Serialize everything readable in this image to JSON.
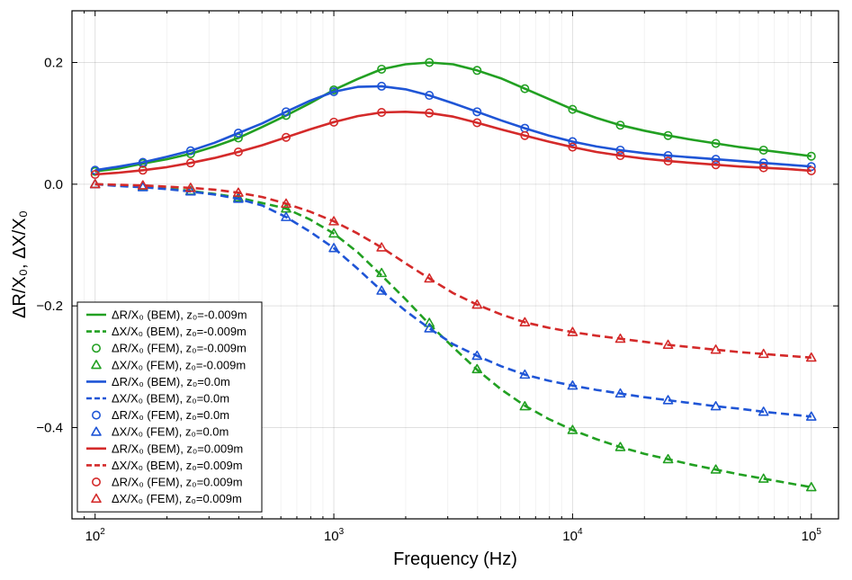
{
  "chart_data": {
    "type": "line",
    "title": "",
    "xlabel": "Frequency (Hz)",
    "ylabel": "ΔR/X₀,  ΔX/X₀",
    "xscale": "log",
    "xlim": [
      80,
      130000
    ],
    "ylim": [
      -0.55,
      0.285
    ],
    "xticks": [
      100,
      1000,
      10000,
      100000
    ],
    "xtick_labels": [
      {
        "base": "10",
        "exp": "2"
      },
      {
        "base": "10",
        "exp": "3"
      },
      {
        "base": "10",
        "exp": "4"
      },
      {
        "base": "10",
        "exp": "5"
      }
    ],
    "yticks": [
      -0.4,
      -0.2,
      0.0,
      0.2
    ],
    "ytick_labels": [
      "−0.4",
      "−0.2",
      "0.0",
      "0.2"
    ],
    "grid": true,
    "legend_position": "bottom-left",
    "curve_x": [
      100,
      125.9,
      158.5,
      199.5,
      251.2,
      316.2,
      398.1,
      501.2,
      631,
      794.3,
      1000,
      1258.9,
      1584.9,
      1995.3,
      2511.9,
      3162.3,
      3981.1,
      5011.9,
      6309.6,
      7943.3,
      10000,
      12589,
      15849,
      19953,
      25119,
      31623,
      39811,
      50119,
      63096,
      79433,
      100000
    ],
    "points_x": [
      100,
      158.5,
      251.2,
      398.1,
      631,
      1000,
      1584.9,
      2511.9,
      3981.1,
      6309.6,
      10000,
      15849,
      25119,
      39811,
      63096,
      100000
    ],
    "series": [
      {
        "name": "ΔR/X₀ (BEM),  z₀=-0.009m",
        "color": "#22a022",
        "style": "solid",
        "marker": "",
        "y": [
          0.021,
          0.026,
          0.034,
          0.041,
          0.05,
          0.062,
          0.076,
          0.094,
          0.113,
          0.133,
          0.155,
          0.173,
          0.189,
          0.197,
          0.2,
          0.197,
          0.187,
          0.174,
          0.157,
          0.14,
          0.123,
          0.109,
          0.097,
          0.088,
          0.08,
          0.073,
          0.067,
          0.061,
          0.056,
          0.051,
          0.046
        ]
      },
      {
        "name": "ΔX/X₀ (BEM),  z₀=-0.009m",
        "color": "#22a022",
        "style": "dashed",
        "marker": "",
        "y": [
          0.0,
          -0.002,
          -0.004,
          -0.007,
          -0.011,
          -0.016,
          -0.022,
          -0.031,
          -0.04,
          -0.058,
          -0.081,
          -0.112,
          -0.15,
          -0.189,
          -0.23,
          -0.268,
          -0.305,
          -0.337,
          -0.364,
          -0.386,
          -0.404,
          -0.419,
          -0.432,
          -0.443,
          -0.452,
          -0.461,
          -0.469,
          -0.477,
          -0.484,
          -0.491,
          -0.498
        ]
      },
      {
        "name": "ΔR/X₀ (FEM),  z₀=-0.009m",
        "color": "#22a022",
        "style": "none",
        "marker": "circle",
        "y": [
          0.021,
          0.034,
          0.05,
          0.076,
          0.113,
          0.155,
          0.189,
          0.2,
          0.187,
          0.157,
          0.123,
          0.097,
          0.08,
          0.067,
          0.056,
          0.046
        ]
      },
      {
        "name": "ΔX/X₀ (FEM),  z₀=-0.009m",
        "color": "#22a022",
        "style": "none",
        "marker": "triangle",
        "y": [
          0.0,
          -0.004,
          -0.011,
          -0.022,
          -0.04,
          -0.081,
          -0.146,
          -0.228,
          -0.304,
          -0.365,
          -0.404,
          -0.432,
          -0.452,
          -0.469,
          -0.484,
          -0.498
        ]
      },
      {
        "name": "ΔR/X₀ (BEM),  z₀=0.0m",
        "color": "#1f55d6",
        "style": "solid",
        "marker": "",
        "y": [
          0.023,
          0.029,
          0.036,
          0.045,
          0.055,
          0.068,
          0.084,
          0.1,
          0.119,
          0.137,
          0.152,
          0.16,
          0.161,
          0.156,
          0.146,
          0.133,
          0.119,
          0.105,
          0.092,
          0.08,
          0.07,
          0.062,
          0.056,
          0.051,
          0.047,
          0.044,
          0.041,
          0.038,
          0.035,
          0.032,
          0.029
        ]
      },
      {
        "name": "ΔX/X₀ (BEM),  z₀=0.0m",
        "color": "#1f55d6",
        "style": "dashed",
        "marker": "",
        "y": [
          0.0,
          -0.003,
          -0.005,
          -0.008,
          -0.012,
          -0.017,
          -0.024,
          -0.035,
          -0.054,
          -0.078,
          -0.105,
          -0.139,
          -0.175,
          -0.208,
          -0.237,
          -0.263,
          -0.282,
          -0.299,
          -0.313,
          -0.323,
          -0.331,
          -0.338,
          -0.344,
          -0.35,
          -0.355,
          -0.36,
          -0.365,
          -0.369,
          -0.374,
          -0.378,
          -0.382
        ]
      },
      {
        "name": "ΔR/X₀ (FEM),  z₀=0.0m",
        "color": "#1f55d6",
        "style": "none",
        "marker": "circle",
        "y": [
          0.023,
          0.036,
          0.055,
          0.084,
          0.119,
          0.152,
          0.161,
          0.146,
          0.119,
          0.092,
          0.07,
          0.056,
          0.047,
          0.041,
          0.035,
          0.029
        ]
      },
      {
        "name": "ΔX/X₀ (FEM),  z₀=0.0m",
        "color": "#1f55d6",
        "style": "none",
        "marker": "triangle",
        "y": [
          0.0,
          -0.005,
          -0.012,
          -0.024,
          -0.054,
          -0.105,
          -0.175,
          -0.237,
          -0.282,
          -0.313,
          -0.331,
          -0.344,
          -0.355,
          -0.365,
          -0.374,
          -0.382
        ]
      },
      {
        "name": "ΔR/X₀ (BEM),  z₀=0.009m",
        "color": "#d42a2a",
        "style": "solid",
        "marker": "",
        "y": [
          0.016,
          0.019,
          0.023,
          0.028,
          0.035,
          0.043,
          0.053,
          0.064,
          0.077,
          0.09,
          0.102,
          0.112,
          0.118,
          0.119,
          0.117,
          0.111,
          0.101,
          0.09,
          0.08,
          0.07,
          0.061,
          0.053,
          0.047,
          0.042,
          0.038,
          0.035,
          0.032,
          0.029,
          0.027,
          0.025,
          0.022
        ]
      },
      {
        "name": "ΔX/X₀ (BEM),  z₀=0.009m",
        "color": "#d42a2a",
        "style": "dashed",
        "marker": "",
        "y": [
          0.0,
          -0.001,
          -0.002,
          -0.004,
          -0.006,
          -0.009,
          -0.014,
          -0.021,
          -0.032,
          -0.045,
          -0.061,
          -0.081,
          -0.104,
          -0.13,
          -0.155,
          -0.179,
          -0.198,
          -0.214,
          -0.227,
          -0.236,
          -0.243,
          -0.249,
          -0.254,
          -0.259,
          -0.264,
          -0.268,
          -0.272,
          -0.276,
          -0.279,
          -0.282,
          -0.285
        ]
      },
      {
        "name": "ΔR/X₀ (FEM),  z₀=0.009m",
        "color": "#d42a2a",
        "style": "none",
        "marker": "circle",
        "y": [
          0.016,
          0.023,
          0.035,
          0.053,
          0.077,
          0.102,
          0.118,
          0.117,
          0.101,
          0.08,
          0.061,
          0.047,
          0.038,
          0.032,
          0.027,
          0.022
        ]
      },
      {
        "name": "ΔX/X₀ (FEM),  z₀=0.009m",
        "color": "#d42a2a",
        "style": "none",
        "marker": "triangle",
        "y": [
          0.0,
          -0.002,
          -0.006,
          -0.014,
          -0.032,
          -0.061,
          -0.104,
          -0.155,
          -0.198,
          -0.227,
          -0.243,
          -0.254,
          -0.264,
          -0.272,
          -0.279,
          -0.285
        ]
      }
    ]
  }
}
